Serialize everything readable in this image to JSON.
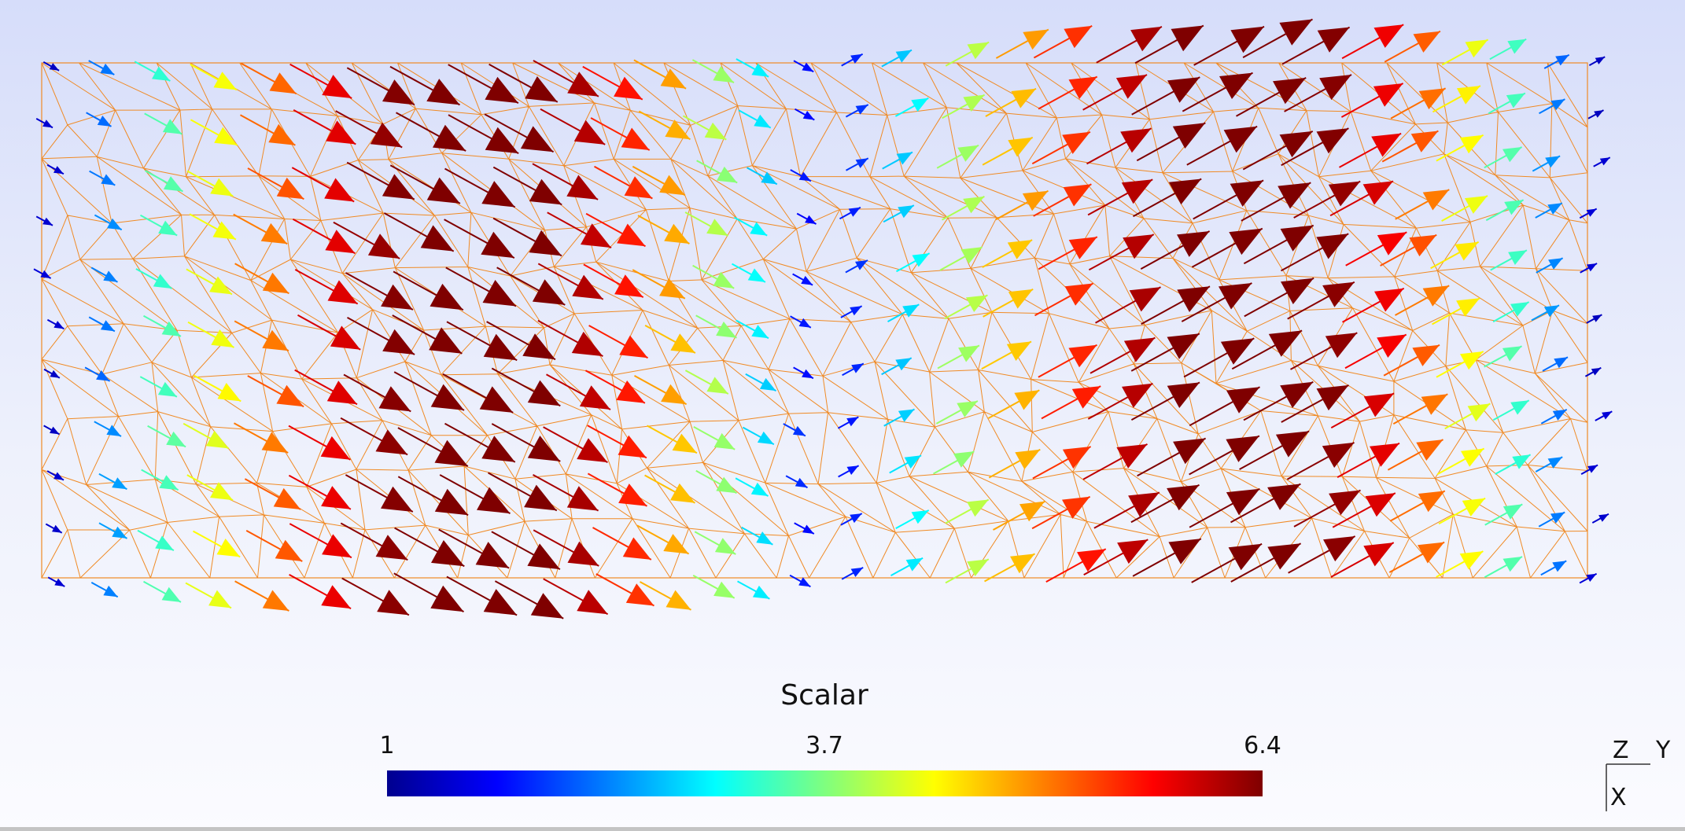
{
  "legend": {
    "title": "Scalar",
    "min_label": "1",
    "mid_label": "3.7",
    "max_label": "6.4",
    "colormap": [
      "#00008f",
      "#0000ff",
      "#007fff",
      "#00ffff",
      "#7fff7f",
      "#ffff00",
      "#ff7f00",
      "#ff0000",
      "#7f0000"
    ]
  },
  "axes": {
    "z": "Z",
    "y": "Y",
    "x": "X"
  },
  "colors": {
    "mesh": "#f08a24",
    "background_top": "#d6ddfa",
    "background_bottom": "#fbfbff"
  }
}
